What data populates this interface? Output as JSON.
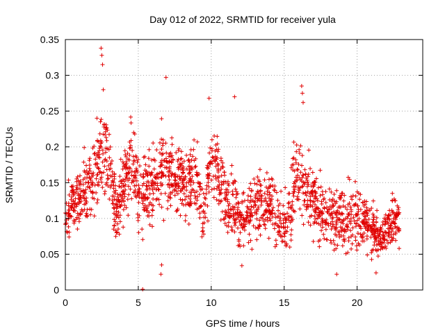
{
  "chart_data": {
    "type": "scatter",
    "title": "Day 012 of 2022, SRMTID for receiver yula",
    "xlabel": "GPS time / hours",
    "ylabel": "SRMTID / TECUs",
    "xlim": [
      0,
      24.5
    ],
    "ylim": [
      0,
      0.35
    ],
    "xticks": [
      0,
      5,
      10,
      15,
      20
    ],
    "xtick_labels": [
      "0",
      "5",
      "10",
      "15",
      "20"
    ],
    "yticks": [
      0,
      0.05,
      0.1,
      0.15,
      0.2,
      0.25,
      0.3,
      0.35
    ],
    "ytick_labels": [
      "0",
      "0.05",
      "0.1",
      "0.15",
      "0.2",
      "0.25",
      "0.3",
      "0.35"
    ],
    "grid": true,
    "marker": "plus",
    "color": "#e00000",
    "x_range_of_data": [
      0,
      22.9
    ],
    "trend": [
      {
        "x": 0.0,
        "mean": 0.11,
        "spread": 0.03
      },
      {
        "x": 1.0,
        "mean": 0.13,
        "spread": 0.035
      },
      {
        "x": 2.0,
        "mean": 0.16,
        "spread": 0.05
      },
      {
        "x": 2.5,
        "mean": 0.21,
        "spread": 0.06
      },
      {
        "x": 3.0,
        "mean": 0.17,
        "spread": 0.05
      },
      {
        "x": 3.5,
        "mean": 0.1,
        "spread": 0.035
      },
      {
        "x": 4.5,
        "mean": 0.19,
        "spread": 0.05
      },
      {
        "x": 5.0,
        "mean": 0.13,
        "spread": 0.045
      },
      {
        "x": 6.0,
        "mean": 0.15,
        "spread": 0.045
      },
      {
        "x": 7.0,
        "mean": 0.17,
        "spread": 0.05
      },
      {
        "x": 8.0,
        "mean": 0.15,
        "spread": 0.045
      },
      {
        "x": 9.0,
        "mean": 0.16,
        "spread": 0.045
      },
      {
        "x": 9.5,
        "mean": 0.1,
        "spread": 0.035
      },
      {
        "x": 10.0,
        "mean": 0.19,
        "spread": 0.05
      },
      {
        "x": 11.0,
        "mean": 0.12,
        "spread": 0.04
      },
      {
        "x": 12.0,
        "mean": 0.1,
        "spread": 0.04
      },
      {
        "x": 13.0,
        "mean": 0.12,
        "spread": 0.04
      },
      {
        "x": 14.0,
        "mean": 0.12,
        "spread": 0.04
      },
      {
        "x": 15.0,
        "mean": 0.09,
        "spread": 0.035
      },
      {
        "x": 16.0,
        "mean": 0.16,
        "spread": 0.05
      },
      {
        "x": 16.5,
        "mean": 0.14,
        "spread": 0.04
      },
      {
        "x": 17.5,
        "mean": 0.11,
        "spread": 0.04
      },
      {
        "x": 18.5,
        "mean": 0.1,
        "spread": 0.04
      },
      {
        "x": 19.5,
        "mean": 0.1,
        "spread": 0.04
      },
      {
        "x": 20.5,
        "mean": 0.1,
        "spread": 0.035
      },
      {
        "x": 21.5,
        "mean": 0.07,
        "spread": 0.025
      },
      {
        "x": 22.5,
        "mean": 0.1,
        "spread": 0.03
      }
    ],
    "notable_points": [
      {
        "x": 2.45,
        "y": 0.338
      },
      {
        "x": 2.5,
        "y": 0.328
      },
      {
        "x": 2.55,
        "y": 0.315
      },
      {
        "x": 2.6,
        "y": 0.28
      },
      {
        "x": 6.9,
        "y": 0.297
      },
      {
        "x": 16.2,
        "y": 0.285
      },
      {
        "x": 16.25,
        "y": 0.275
      },
      {
        "x": 16.3,
        "y": 0.262
      },
      {
        "x": 11.6,
        "y": 0.27
      },
      {
        "x": 9.85,
        "y": 0.268
      },
      {
        "x": 5.3,
        "y": 0.001
      },
      {
        "x": 6.55,
        "y": 0.022
      },
      {
        "x": 6.6,
        "y": 0.035
      },
      {
        "x": 18.6,
        "y": 0.022
      },
      {
        "x": 21.3,
        "y": 0.024
      },
      {
        "x": 12.1,
        "y": 0.034
      }
    ]
  }
}
